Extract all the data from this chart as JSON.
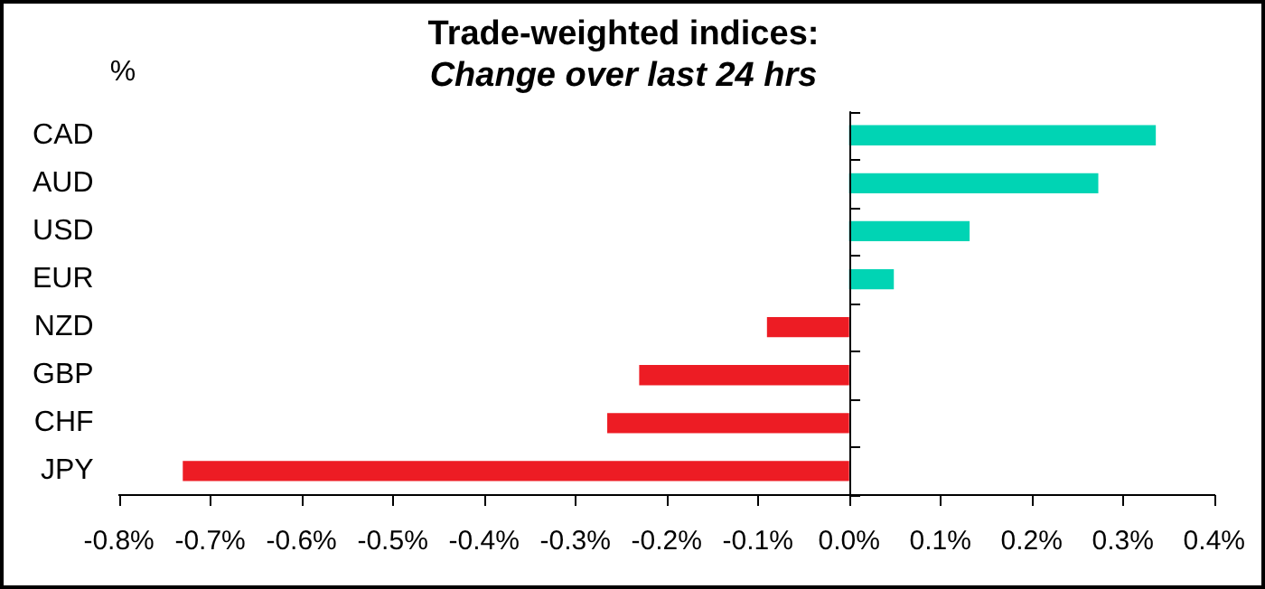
{
  "chart_data": {
    "type": "bar",
    "orientation": "horizontal",
    "title": "Trade-weighted indices:",
    "subtitle": "Change over last 24 hrs",
    "ylabel": "%",
    "categories": [
      "CAD",
      "AUD",
      "USD",
      "EUR",
      "NZD",
      "GBP",
      "CHF",
      "JPY"
    ],
    "values": [
      0.336,
      0.273,
      0.132,
      0.049,
      -0.09,
      -0.23,
      -0.265,
      -0.73
    ],
    "colors": [
      "#00d4b4",
      "#00d4b4",
      "#00d4b4",
      "#00d4b4",
      "#ed1c24",
      "#ed1c24",
      "#ed1c24",
      "#ed1c24"
    ],
    "xlim": [
      -0.8,
      0.4
    ],
    "xticks": [
      {
        "value": -0.8,
        "label": "-0.8%"
      },
      {
        "value": -0.7,
        "label": "-0.7%"
      },
      {
        "value": -0.6,
        "label": "-0.6%"
      },
      {
        "value": -0.5,
        "label": "-0.5%"
      },
      {
        "value": -0.4,
        "label": "-0.4%"
      },
      {
        "value": -0.3,
        "label": "-0.3%"
      },
      {
        "value": -0.2,
        "label": "-0.2%"
      },
      {
        "value": -0.1,
        "label": "-0.1%"
      },
      {
        "value": 0,
        "label": "0.0%"
      },
      {
        "value": 0.1,
        "label": "0.1%"
      },
      {
        "value": 0.2,
        "label": "0.2%"
      },
      {
        "value": 0.3,
        "label": "0.3%"
      },
      {
        "value": 0.4,
        "label": "0.4%"
      }
    ],
    "ref_lines": [
      {
        "axis": "x",
        "value": 0,
        "color": "#000000"
      }
    ],
    "grid": false,
    "legend": false
  }
}
